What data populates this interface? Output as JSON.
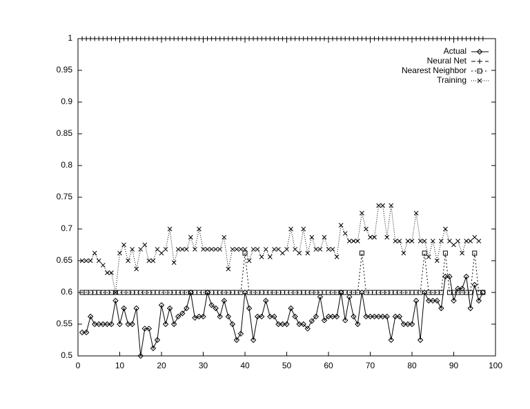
{
  "chart_data": {
    "type": "line",
    "x": [
      1,
      2,
      3,
      4,
      5,
      6,
      7,
      8,
      9,
      10,
      11,
      12,
      13,
      14,
      15,
      16,
      17,
      18,
      19,
      20,
      21,
      22,
      23,
      24,
      25,
      26,
      27,
      28,
      29,
      30,
      31,
      32,
      33,
      34,
      35,
      36,
      37,
      38,
      39,
      40,
      41,
      42,
      43,
      44,
      45,
      46,
      47,
      48,
      49,
      50,
      51,
      52,
      53,
      54,
      55,
      56,
      57,
      58,
      59,
      60,
      61,
      62,
      63,
      64,
      65,
      66,
      67,
      68,
      69,
      70,
      71,
      72,
      73,
      74,
      75,
      76,
      77,
      78,
      79,
      80,
      81,
      82,
      83,
      84,
      85,
      86,
      87,
      88,
      89,
      90,
      91,
      92,
      93,
      94,
      95,
      96,
      97
    ],
    "series": [
      {
        "name": "Actual",
        "color": "#000000",
        "marker": "diamond",
        "dash": "none",
        "values": [
          0.537,
          0.537,
          0.562,
          0.55,
          0.55,
          0.55,
          0.55,
          0.55,
          0.587,
          0.55,
          0.575,
          0.55,
          0.55,
          0.575,
          0.5,
          0.543,
          0.543,
          0.512,
          0.525,
          0.58,
          0.55,
          0.575,
          0.55,
          0.562,
          0.567,
          0.575,
          0.6,
          0.56,
          0.562,
          0.562,
          0.6,
          0.58,
          0.575,
          0.562,
          0.587,
          0.562,
          0.55,
          0.525,
          0.535,
          0.6,
          0.575,
          0.525,
          0.562,
          0.562,
          0.587,
          0.562,
          0.562,
          0.55,
          0.55,
          0.55,
          0.575,
          0.562,
          0.55,
          0.55,
          0.543,
          0.555,
          0.562,
          0.593,
          0.556,
          0.562,
          0.562,
          0.562,
          0.6,
          0.556,
          0.593,
          0.562,
          0.55,
          0.6,
          0.562,
          0.562,
          0.562,
          0.562,
          0.562,
          0.562,
          0.525,
          0.562,
          0.562,
          0.55,
          0.55,
          0.55,
          0.587,
          0.525,
          0.6,
          0.587,
          0.587,
          0.587,
          0.575,
          0.625,
          0.625,
          0.587,
          0.606,
          0.606,
          0.625,
          0.575,
          0.612,
          0.587,
          0.6
        ]
      },
      {
        "name": "Neural Net",
        "color": "#000000",
        "marker": "plus",
        "dash": "6 4",
        "values": [
          1,
          1,
          1,
          1,
          1,
          1,
          1,
          1,
          1,
          1,
          1,
          1,
          1,
          1,
          1,
          1,
          1,
          1,
          1,
          1,
          1,
          1,
          1,
          1,
          1,
          1,
          1,
          1,
          1,
          1,
          1,
          1,
          1,
          1,
          1,
          1,
          1,
          1,
          1,
          1,
          1,
          1,
          1,
          1,
          1,
          1,
          1,
          1,
          1,
          1,
          1,
          1,
          1,
          1,
          1,
          1,
          1,
          1,
          1,
          1,
          1,
          1,
          1,
          1,
          1,
          1,
          1,
          1,
          1,
          1,
          1,
          1,
          1,
          1,
          1,
          1,
          1,
          1,
          1,
          1,
          1,
          1,
          1,
          1,
          1,
          1,
          1,
          1,
          1,
          1,
          1,
          1,
          1,
          1,
          1,
          1,
          1
        ]
      },
      {
        "name": "Nearest Neighbor",
        "color": "#000000",
        "marker": "square",
        "dash": "2 3",
        "values": [
          0.6,
          0.6,
          0.6,
          0.6,
          0.6,
          0.6,
          0.6,
          0.6,
          0.6,
          0.6,
          0.6,
          0.6,
          0.6,
          0.6,
          0.6,
          0.6,
          0.6,
          0.6,
          0.6,
          0.6,
          0.6,
          0.6,
          0.6,
          0.6,
          0.6,
          0.6,
          0.6,
          0.6,
          0.6,
          0.6,
          0.6,
          0.6,
          0.6,
          0.6,
          0.6,
          0.6,
          0.6,
          0.6,
          0.6,
          0.662,
          0.6,
          0.6,
          0.6,
          0.6,
          0.6,
          0.6,
          0.6,
          0.6,
          0.6,
          0.6,
          0.6,
          0.6,
          0.6,
          0.6,
          0.6,
          0.6,
          0.6,
          0.6,
          0.6,
          0.6,
          0.6,
          0.6,
          0.6,
          0.6,
          0.6,
          0.6,
          0.6,
          0.662,
          0.6,
          0.6,
          0.6,
          0.6,
          0.6,
          0.6,
          0.6,
          0.6,
          0.6,
          0.6,
          0.6,
          0.6,
          0.6,
          0.6,
          0.662,
          0.6,
          0.6,
          0.6,
          0.6,
          0.662,
          0.6,
          0.6,
          0.6,
          0.6,
          0.6,
          0.6,
          0.662,
          0.6,
          0.6
        ]
      },
      {
        "name": "Training",
        "color": "#000000",
        "marker": "cross",
        "dash": "1 2",
        "values": [
          0.65,
          0.65,
          0.65,
          0.662,
          0.65,
          0.643,
          0.631,
          0.631,
          0.6,
          0.662,
          0.675,
          0.65,
          0.668,
          0.637,
          0.668,
          0.675,
          0.65,
          0.65,
          0.668,
          0.662,
          0.668,
          0.7,
          0.647,
          0.668,
          0.668,
          0.668,
          0.687,
          0.668,
          0.7,
          0.668,
          0.668,
          0.668,
          0.668,
          0.668,
          0.687,
          0.637,
          0.668,
          0.668,
          0.668,
          0.668,
          0.65,
          0.668,
          0.668,
          0.656,
          0.668,
          0.656,
          0.668,
          0.668,
          0.662,
          0.668,
          0.7,
          0.668,
          0.662,
          0.7,
          0.662,
          0.687,
          0.668,
          0.668,
          0.687,
          0.668,
          0.668,
          0.656,
          0.706,
          0.693,
          0.681,
          0.681,
          0.681,
          0.725,
          0.7,
          0.687,
          0.687,
          0.737,
          0.737,
          0.687,
          0.737,
          0.681,
          0.681,
          0.662,
          0.681,
          0.681,
          0.725,
          0.681,
          0.681,
          0.656,
          0.681,
          0.65,
          0.681,
          0.7,
          0.681,
          0.675,
          0.681,
          0.662,
          0.681,
          0.681,
          0.687,
          0.681,
          null
        ]
      }
    ],
    "xlim": [
      0,
      100
    ],
    "xticks": [
      0,
      10,
      20,
      30,
      40,
      50,
      60,
      70,
      80,
      90,
      100
    ],
    "ylim": [
      0.5,
      1
    ],
    "yticks": [
      0.5,
      0.55,
      0.6,
      0.65,
      0.7,
      0.75,
      0.8,
      0.85,
      0.9,
      0.95,
      1
    ],
    "legend": "top-right"
  }
}
